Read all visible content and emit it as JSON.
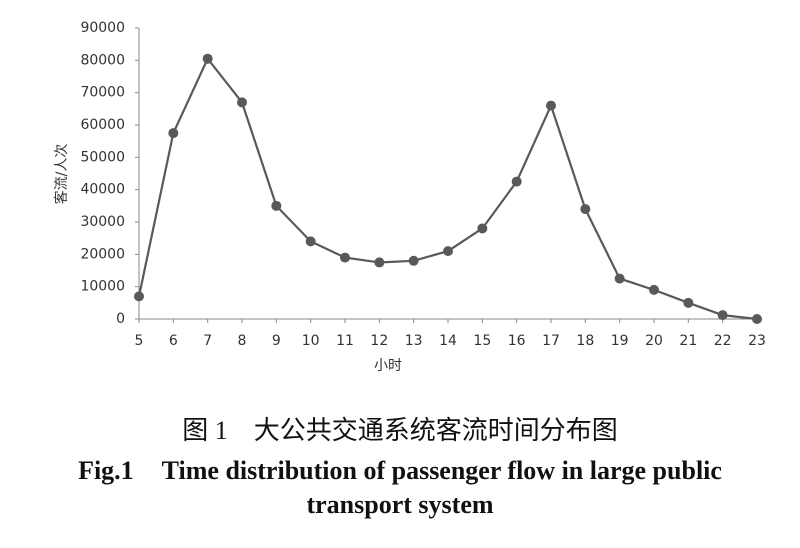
{
  "chart_data": {
    "type": "line",
    "x_label": "小时",
    "y_label": "客流/人次",
    "x": [
      5,
      6,
      7,
      8,
      9,
      10,
      11,
      12,
      13,
      14,
      15,
      16,
      17,
      18,
      19,
      20,
      21,
      22,
      23
    ],
    "series": [
      {
        "color": "#595959",
        "values": [
          7000,
          57500,
          80500,
          67000,
          35000,
          24000,
          19000,
          17500,
          18000,
          21000,
          28000,
          42500,
          66000,
          34000,
          12500,
          9000,
          5000,
          1200,
          0
        ]
      }
    ],
    "xlim": [
      5,
      23
    ],
    "xticks": [
      5,
      6,
      7,
      8,
      9,
      10,
      11,
      12,
      13,
      14,
      15,
      16,
      17,
      18,
      19,
      20,
      21,
      22,
      23
    ],
    "ylim": [
      0,
      90000
    ],
    "yticks": [
      0,
      10000,
      20000,
      30000,
      40000,
      50000,
      60000,
      70000,
      80000,
      90000
    ],
    "grid": false
  },
  "caption": {
    "cn": "图 1　大公共交通系统客流时间分布图",
    "en_label": "Fig.1",
    "en": "Time distribution of passenger flow in large public transport system"
  }
}
